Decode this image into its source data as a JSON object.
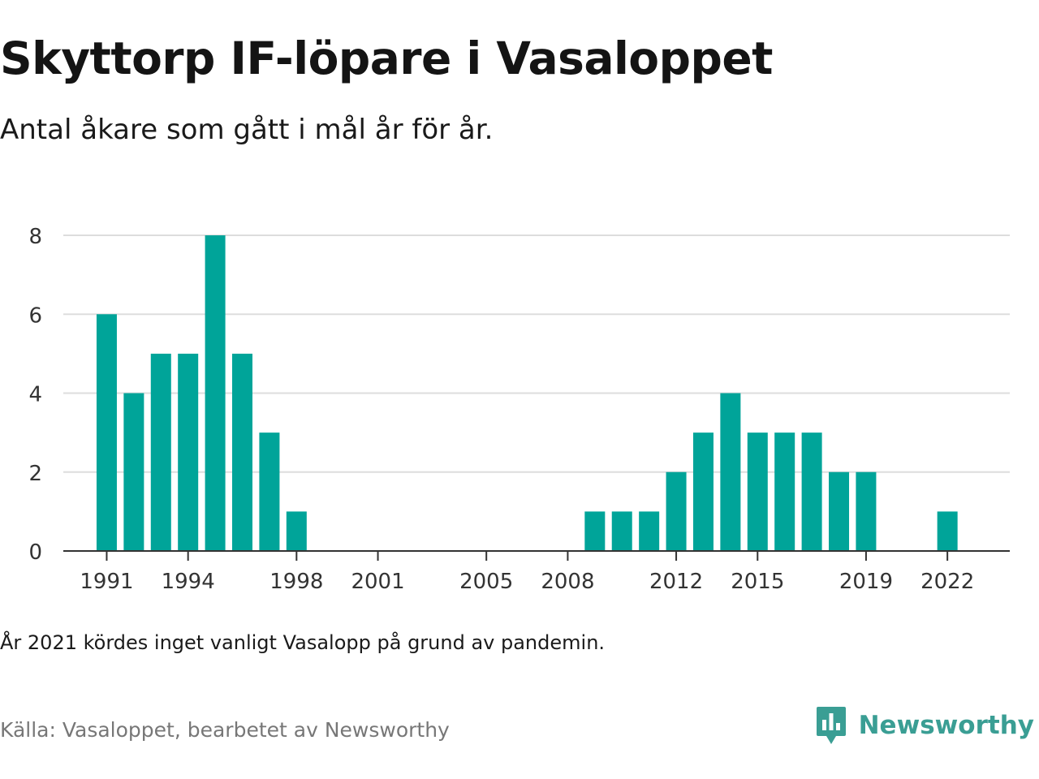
{
  "title": "Skyttorp IF-löpare i Vasaloppet",
  "subtitle": "Antal åkare som gått i mål år för år.",
  "note": "År 2021 kördes inget vanligt Vasalopp på grund av pandemin.",
  "source": "Källa: Vasaloppet, bearbetet av Newsworthy",
  "brand": {
    "name": "Newsworthy",
    "logo_icon": "newsworthy-logo-icon",
    "color": "#3a9e94"
  },
  "colors": {
    "bar": "#00a499",
    "grid": "#dddddd",
    "axis": "#333333"
  },
  "chart_data": {
    "type": "bar",
    "title": "Skyttorp IF-löpare i Vasaloppet",
    "subtitle": "Antal åkare som gått i mål år för år.",
    "xlabel": "",
    "ylabel": "",
    "x": [
      1991,
      1992,
      1993,
      1994,
      1995,
      1996,
      1997,
      1998,
      2009,
      2010,
      2011,
      2012,
      2013,
      2014,
      2015,
      2016,
      2017,
      2018,
      2019,
      2022
    ],
    "values": [
      6,
      4,
      5,
      5,
      8,
      5,
      3,
      1,
      1,
      1,
      1,
      2,
      3,
      4,
      3,
      3,
      3,
      2,
      2,
      1
    ],
    "xlim": [
      1989.4,
      2024.3
    ],
    "ylim": [
      0,
      8
    ],
    "y_ticks": [
      0,
      2,
      4,
      6,
      8
    ],
    "x_ticks": [
      1991,
      1994,
      1998,
      2001,
      2005,
      2008,
      2012,
      2015,
      2019,
      2022
    ],
    "grid": "horizontal",
    "legend": "none"
  }
}
